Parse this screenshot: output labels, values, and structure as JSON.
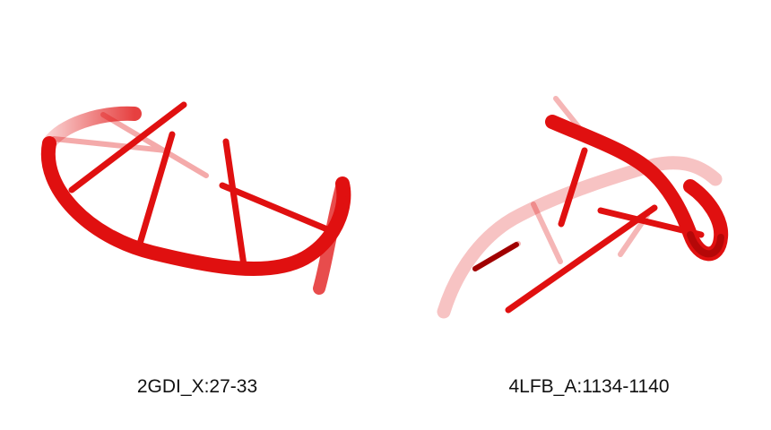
{
  "colors": {
    "strand": "#e01010",
    "strand_dark": "#b00000",
    "strand_faded": "#f08080"
  },
  "structures": [
    {
      "id": "2GDI_X:27-33"
    },
    {
      "id": "4LFB_A:1134-1140"
    }
  ]
}
